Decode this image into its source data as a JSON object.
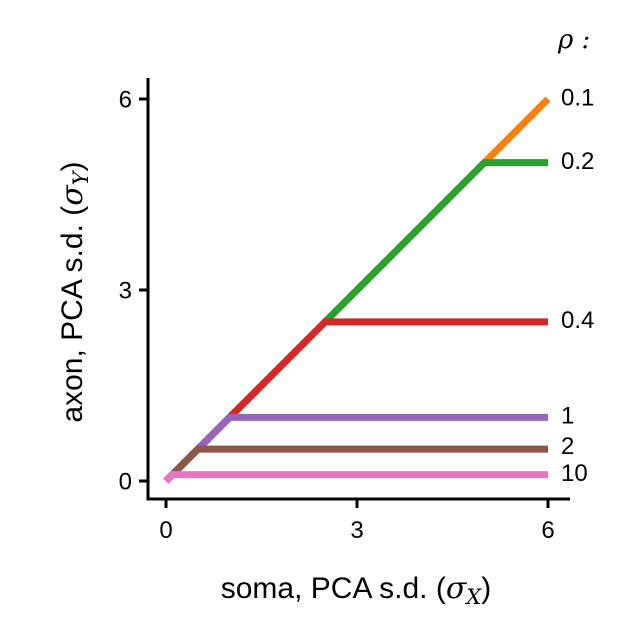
{
  "chart_data": {
    "type": "line",
    "xlabel": "soma, PCA s.d. (σX)",
    "ylabel": "axon, PCA s.d. (σY)",
    "legend_title": "ρ :",
    "xlim": [
      0,
      6
    ],
    "ylim": [
      0,
      6
    ],
    "x_ticks": [
      "0",
      "3",
      "6"
    ],
    "y_ticks": [
      "0",
      "3",
      "6"
    ],
    "grid": false,
    "legend_placement": "right, labels at line ends",
    "series": [
      {
        "name": "0.1",
        "color": "#ff7f0e",
        "x": [
          0,
          6
        ],
        "y": [
          0,
          6
        ]
      },
      {
        "name": "0.2",
        "color": "#2ca02c",
        "x": [
          0,
          5,
          6
        ],
        "y": [
          0,
          5,
          5
        ]
      },
      {
        "name": "0.4",
        "color": "#d62728",
        "x": [
          0,
          2.5,
          6
        ],
        "y": [
          0,
          2.5,
          2.5
        ]
      },
      {
        "name": "1",
        "color": "#9467bd",
        "x": [
          0,
          1,
          6
        ],
        "y": [
          0,
          1,
          1
        ]
      },
      {
        "name": "2",
        "color": "#8c564b",
        "x": [
          0,
          0.5,
          6
        ],
        "y": [
          0,
          0.5,
          0.5
        ]
      },
      {
        "name": "10",
        "color": "#e377c2",
        "x": [
          0,
          0.1,
          6
        ],
        "y": [
          0,
          0.1,
          0.1
        ]
      }
    ]
  }
}
